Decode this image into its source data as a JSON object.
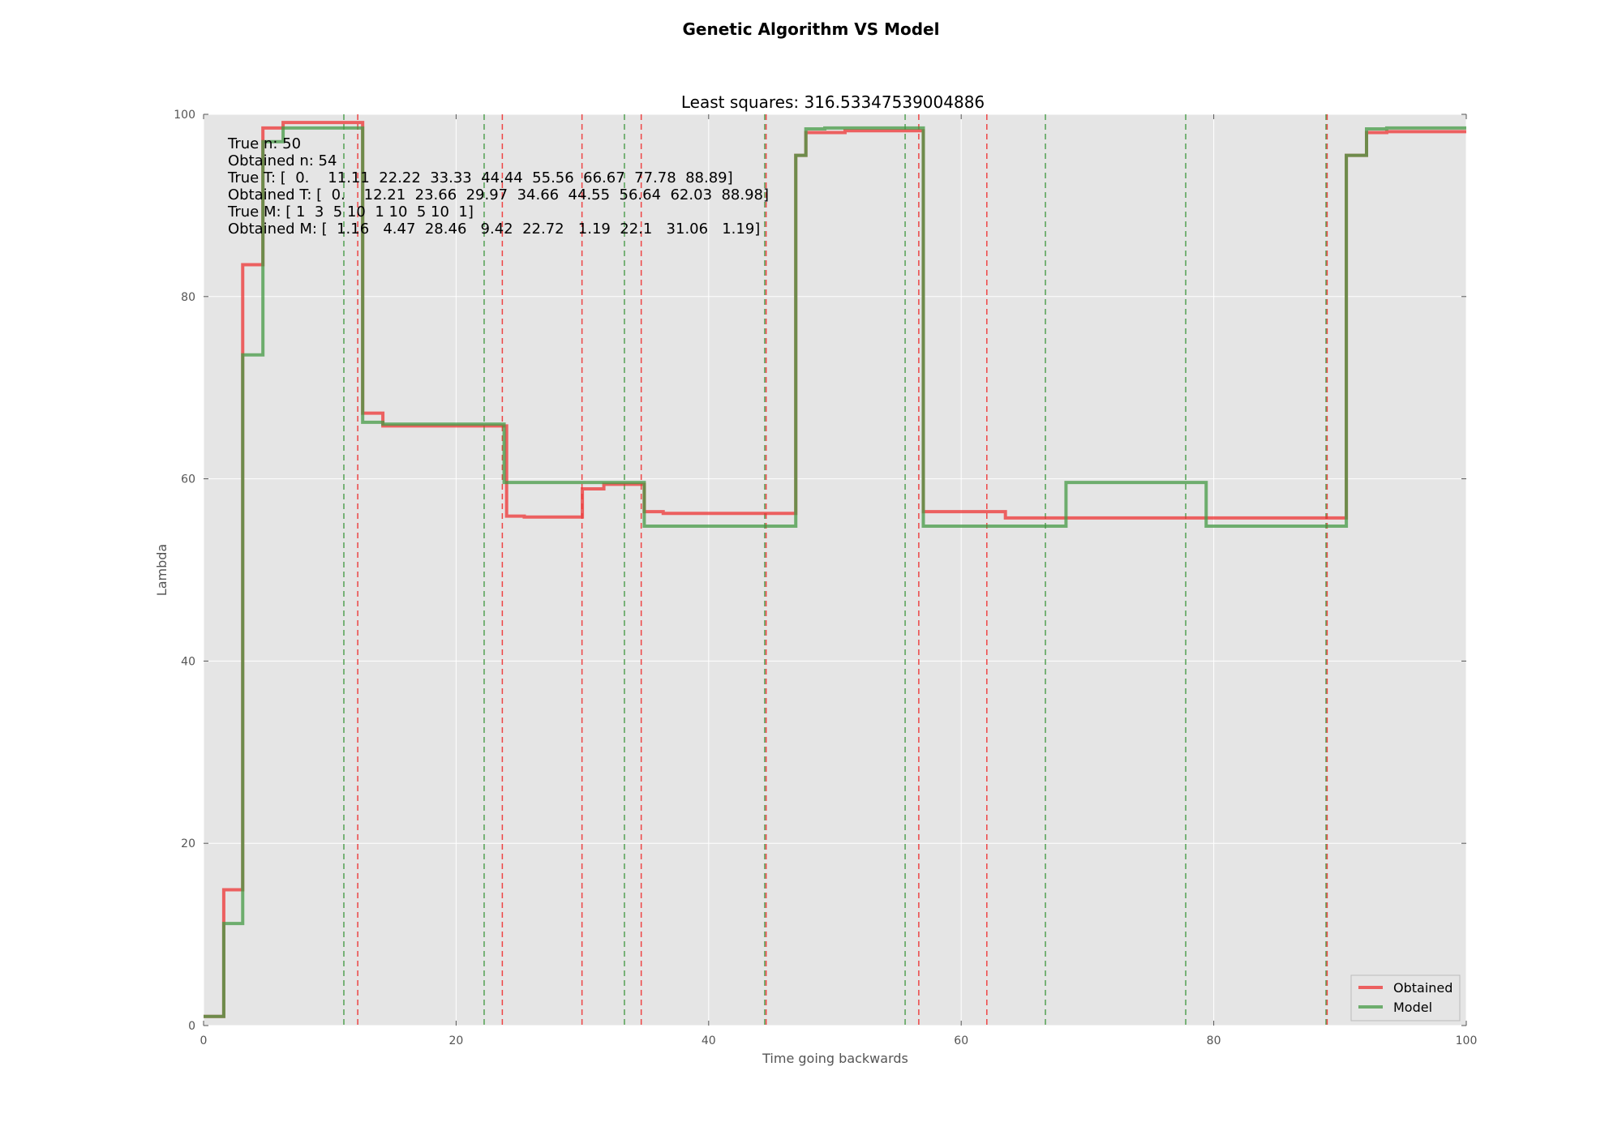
{
  "chart_data": {
    "type": "line",
    "title": "Genetic Algorithm VS Model",
    "subtitle": "Least squares: 316.53347539004886",
    "xlabel": "Time going backwards",
    "ylabel": "Lambda",
    "xlim": [
      0,
      100
    ],
    "ylim": [
      0,
      100
    ],
    "xticks": [
      0,
      20,
      40,
      60,
      80,
      100
    ],
    "yticks": [
      0,
      20,
      40,
      60,
      80,
      100
    ],
    "grid": true,
    "legend_position": "lower-right",
    "annotation_lines": [
      "True n: 50",
      "Obtained n: 54",
      "True T: [  0.    11.11  22.22  33.33  44.44  55.56  66.67  77.78  88.89]",
      "Obtained T: [  0.    12.21  23.66  29.97  34.66  44.55  56.64  62.03  88.98]",
      "True M: [ 1  3  5 10  1 10  5 10  1]",
      "Obtained M: [  1.16   4.47  28.46   9.42  22.72   1.19  22.1   31.06   1.19]"
    ],
    "true_T": [
      0,
      11.11,
      22.22,
      33.33,
      44.44,
      55.56,
      66.67,
      77.78,
      88.89
    ],
    "obtained_T": [
      0,
      12.21,
      23.66,
      29.97,
      34.66,
      44.55,
      56.64,
      62.03,
      88.98
    ],
    "series": [
      {
        "name": "Obtained",
        "color": "#ee3333",
        "step": "post",
        "x": [
          0,
          1.6,
          3.1,
          4.7,
          6.3,
          12.6,
          14.2,
          23.8,
          24.0,
          25.4,
          30.0,
          31.7,
          34.9,
          36.4,
          44.6,
          46.9,
          47.7,
          49.2,
          50.8,
          57.0,
          63.5,
          68.3,
          79.4,
          90.5,
          92.1,
          93.7,
          100
        ],
        "y": [
          1.0,
          14.9,
          83.5,
          98.5,
          99.1,
          67.2,
          65.8,
          65.8,
          55.9,
          55.8,
          58.9,
          59.4,
          56.4,
          56.2,
          56.2,
          95.5,
          98.0,
          98.0,
          98.2,
          56.4,
          55.7,
          55.7,
          55.7,
          95.5,
          98.0,
          98.1,
          98.1
        ]
      },
      {
        "name": "Model",
        "color": "#449944",
        "step": "post",
        "x": [
          0,
          1.6,
          3.1,
          4.7,
          6.3,
          12.6,
          14.2,
          23.8,
          25.4,
          30.0,
          31.7,
          34.9,
          36.4,
          44.6,
          46.9,
          47.7,
          49.2,
          50.8,
          57.0,
          63.5,
          68.3,
          79.4,
          90.5,
          92.1,
          93.7,
          100
        ],
        "y": [
          1.0,
          11.2,
          73.6,
          97.0,
          98.5,
          66.2,
          66.0,
          59.6,
          59.6,
          59.6,
          59.6,
          54.8,
          54.8,
          54.8,
          95.5,
          98.4,
          98.5,
          98.5,
          54.8,
          54.8,
          59.6,
          54.8,
          95.5,
          98.4,
          98.5,
          98.5
        ]
      }
    ]
  }
}
